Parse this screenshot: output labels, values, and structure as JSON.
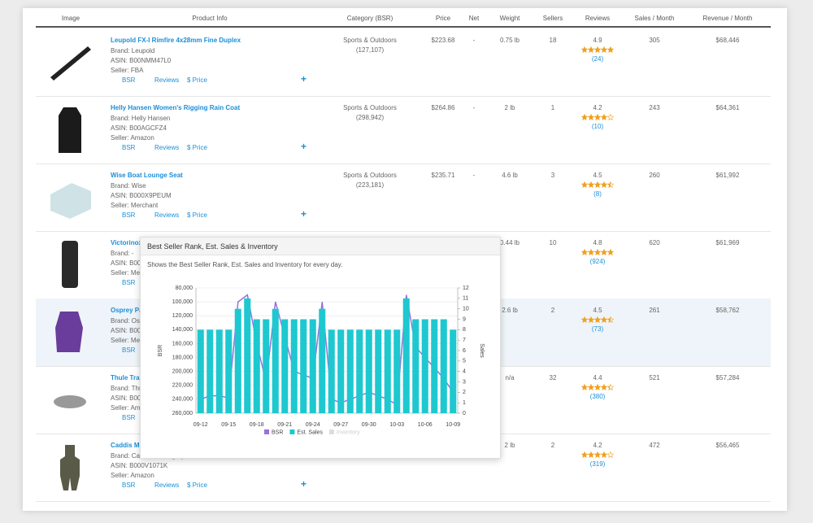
{
  "header": [
    "Image",
    "Product Info",
    "Category (BSR)",
    "Price",
    "Net",
    "Weight",
    "Sellers",
    "Reviews",
    "Sales / Month",
    "Revenue / Month"
  ],
  "rows": [
    {
      "title": "Leupold FX-I Rimfire 4x28mm Fine Duplex",
      "brand": "Brand: Leupold",
      "asin": "ASIN: B00NMM47L0",
      "seller": "Seller: FBA",
      "category": "Sports & Outdoors",
      "bsr": "(127,107)",
      "price": "$223.68",
      "net": "-",
      "weight": "0.75 lb",
      "sellers": "18",
      "rating": 4.9,
      "reviews": "(24)",
      "sales": "305",
      "revenue": "$68,446",
      "links": [
        "BSR",
        "Reviews",
        "$ Price"
      ]
    },
    {
      "title": "Helly Hansen Women's Rigging Rain Coat",
      "brand": "Brand: Helly Hansen",
      "asin": "ASIN: B00AGCFZ4",
      "seller": "Seller: Amazon",
      "category": "Sports & Outdoors",
      "bsr": "(298,942)",
      "price": "$264.86",
      "net": "-",
      "weight": "2 lb",
      "sellers": "1",
      "rating": 4.2,
      "reviews": "(10)",
      "sales": "243",
      "revenue": "$64,361",
      "links": [
        "BSR",
        "Reviews",
        "$ Price"
      ]
    },
    {
      "title": "Wise Boat Lounge Seat",
      "brand": "Brand: Wise",
      "asin": "ASIN: B000X9PEUM",
      "seller": "Seller: Merchant",
      "category": "Sports & Outdoors",
      "bsr": "(223,181)",
      "price": "$235.71",
      "net": "-",
      "weight": "4.6 lb",
      "sellers": "3",
      "rating": 4.5,
      "reviews": "(8)",
      "sales": "260",
      "revenue": "$61,992",
      "links": [
        "BSR",
        "Reviews",
        "$ Price"
      ]
    },
    {
      "title": "Victorinox",
      "brand": "Brand: -",
      "asin": "ASIN: B000",
      "seller": "Seller: Merc",
      "weight": "0.44 lb",
      "sellers": "10",
      "rating": 4.8,
      "reviews": "(924)",
      "sales": "620",
      "revenue": "$61,969",
      "links": [
        "BSR"
      ]
    },
    {
      "title": "Osprey Pa",
      "brand": "Brand: Osp",
      "asin": "ASIN: B00O",
      "seller": "Seller: Merc",
      "weight": "2.6 lb",
      "sellers": "2",
      "rating": 4.5,
      "reviews": "(73)",
      "sales": "261",
      "revenue": "$58,762",
      "links": [
        "BSR"
      ]
    },
    {
      "title": "Thule Tra",
      "brand": "Brand: Thul",
      "asin": "ASIN: B00",
      "seller": "Seller: Ama",
      "weight": "n/a",
      "sellers": "32",
      "rating": 4.4,
      "reviews": "(380)",
      "sales": "521",
      "revenue": "$57,284",
      "links": [
        "BSR"
      ]
    },
    {
      "title": "Caddis Me",
      "brand": "Brand: Caddis Wading Systems",
      "asin": "ASIN: B000V1071K",
      "seller": "Seller: Amazon",
      "weight": "2 lb",
      "sellers": "2",
      "rating": 4.2,
      "reviews": "(319)",
      "sales": "472",
      "revenue": "$56,465",
      "links": [
        "BSR",
        "Reviews",
        "$ Price"
      ]
    }
  ],
  "chart_data": {
    "type": "bar-line",
    "title": "Best Seller Rank, Est. Sales & Inventory",
    "subtitle": "Shows the Best Seller Rank, Est. Sales and Inventory for every day.",
    "ylabel": "BSR",
    "y2label": "Sales",
    "categories": [
      "09-12",
      null,
      null,
      "09-15",
      null,
      null,
      "09-18",
      null,
      null,
      "09-21",
      null,
      null,
      "09-24",
      null,
      null,
      "09-27",
      null,
      null,
      "09-30",
      null,
      null,
      "10-03",
      null,
      null,
      "10-06",
      null,
      null,
      "10-09"
    ],
    "ylim": [
      80000,
      260000
    ],
    "y_reversed": true,
    "yticks": [
      {
        "value": 80000,
        "label": "80,000"
      },
      {
        "value": 100000,
        "label": "100,000"
      },
      {
        "value": 120000,
        "label": "120,000"
      },
      {
        "value": 140000,
        "label": "140,000"
      },
      {
        "value": 160000,
        "label": "160,000"
      },
      {
        "value": 180000,
        "label": "180,000"
      },
      {
        "value": 200000,
        "label": "200,000"
      },
      {
        "value": 220000,
        "label": "220,000"
      },
      {
        "value": 240000,
        "label": "240,000"
      },
      {
        "value": 260000,
        "label": "260,000"
      }
    ],
    "y2lim": [
      0,
      12
    ],
    "y2ticks": [
      0,
      1,
      2,
      3,
      4,
      5,
      6,
      7,
      8,
      9,
      10,
      11,
      12
    ],
    "grid": true,
    "series": [
      {
        "name": "BSR",
        "color": "#9b6fdc",
        "kind": "line",
        "axis": "y",
        "values": [
          240000,
          235000,
          235000,
          238000,
          100000,
          90000,
          160000,
          215000,
          100000,
          150000,
          200000,
          205000,
          210000,
          100000,
          240000,
          245000,
          240000,
          235000,
          230000,
          235000,
          240000,
          248000,
          90000,
          165000,
          180000,
          195000,
          210000,
          230000
        ]
      },
      {
        "name": "Est. Sales",
        "color": "#1ec8d0",
        "kind": "bar",
        "axis": "y2",
        "values": [
          8,
          8,
          8,
          8,
          10,
          11,
          9,
          9,
          10,
          9,
          9,
          9,
          9,
          10,
          8,
          8,
          8,
          8,
          8,
          8,
          8,
          8,
          11,
          9,
          9,
          9,
          9,
          8
        ]
      },
      {
        "name": "Inventory",
        "color": "#dddddd",
        "kind": "line",
        "axis": "y2",
        "visible": false,
        "values": [
          null,
          null,
          null,
          null,
          null,
          null,
          null,
          null,
          null,
          null,
          null,
          null,
          null,
          null,
          null,
          null,
          null,
          null,
          null,
          null,
          null,
          null,
          null,
          null,
          null,
          null,
          null,
          null
        ]
      }
    ]
  }
}
